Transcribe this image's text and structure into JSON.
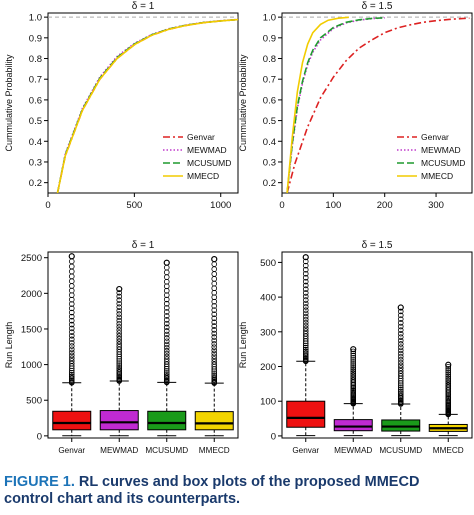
{
  "caption": {
    "label": "FIGURE 1.",
    "text": "RL curves and box plots of the proposed MMECD control chart and its counterparts."
  },
  "chart_data": [
    {
      "id": "cdf1",
      "type": "line",
      "title": "δ = 1",
      "xlabel": "",
      "ylabel": "Cummulative Probability",
      "xlim": [
        0,
        1100
      ],
      "ylim": [
        0.15,
        1.02
      ],
      "xticks": [
        "0",
        "500",
        "1000"
      ],
      "xtick_values": [
        0,
        500,
        1000
      ],
      "yticks": [
        "0.2",
        "0.3",
        "0.4",
        "0.5",
        "0.6",
        "0.7",
        "0.8",
        "0.9",
        "1.0"
      ],
      "ytick_values": [
        0.2,
        0.3,
        0.4,
        0.5,
        0.6,
        0.7,
        0.8,
        0.9,
        1.0
      ],
      "reference_line": 1.0,
      "legend_position": "bottom-right",
      "series": [
        {
          "name": "Genvar",
          "color": "#dd2222",
          "dash": "dashdot",
          "points": [
            [
              55,
              0.15
            ],
            [
              100,
              0.33
            ],
            [
              200,
              0.55
            ],
            [
              300,
              0.7
            ],
            [
              400,
              0.8
            ],
            [
              500,
              0.867
            ],
            [
              600,
              0.912
            ],
            [
              700,
              0.941
            ],
            [
              800,
              0.96
            ],
            [
              900,
              0.973
            ],
            [
              1000,
              0.982
            ],
            [
              1100,
              0.988
            ]
          ]
        },
        {
          "name": "MEWMAD",
          "color": "#c03acb",
          "dash": "dotted",
          "points": [
            [
              55,
              0.15
            ],
            [
              100,
              0.34
            ],
            [
              200,
              0.56
            ],
            [
              300,
              0.71
            ],
            [
              400,
              0.81
            ],
            [
              500,
              0.873
            ],
            [
              600,
              0.916
            ],
            [
              700,
              0.944
            ],
            [
              800,
              0.962
            ],
            [
              900,
              0.975
            ],
            [
              1000,
              0.983
            ],
            [
              1100,
              0.989
            ]
          ]
        },
        {
          "name": "MCUSUMD",
          "color": "#1e9a2e",
          "dash": "dashed",
          "points": [
            [
              55,
              0.15
            ],
            [
              100,
              0.335
            ],
            [
              200,
              0.555
            ],
            [
              300,
              0.705
            ],
            [
              400,
              0.805
            ],
            [
              500,
              0.87
            ],
            [
              600,
              0.914
            ],
            [
              700,
              0.943
            ],
            [
              800,
              0.961
            ],
            [
              900,
              0.974
            ],
            [
              1000,
              0.982
            ],
            [
              1100,
              0.988
            ]
          ]
        },
        {
          "name": "MMECD",
          "color": "#f2cc00",
          "dash": "solid",
          "points": [
            [
              55,
              0.15
            ],
            [
              100,
              0.33
            ],
            [
              200,
              0.55
            ],
            [
              300,
              0.7
            ],
            [
              400,
              0.8
            ],
            [
              500,
              0.867
            ],
            [
              600,
              0.912
            ],
            [
              700,
              0.941
            ],
            [
              800,
              0.96
            ],
            [
              900,
              0.973
            ],
            [
              1000,
              0.982
            ],
            [
              1100,
              0.988
            ]
          ]
        }
      ]
    },
    {
      "id": "cdf2",
      "type": "line",
      "title": "δ = 1.5",
      "xlabel": "",
      "ylabel": "Cummulative Probability",
      "xlim": [
        0,
        370
      ],
      "ylim": [
        0.15,
        1.02
      ],
      "xticks": [
        "0",
        "100",
        "200",
        "300"
      ],
      "xtick_values": [
        0,
        100,
        200,
        300
      ],
      "yticks": [
        "0.2",
        "0.3",
        "0.4",
        "0.5",
        "0.6",
        "0.7",
        "0.8",
        "0.9",
        "1.0"
      ],
      "ytick_values": [
        0.2,
        0.3,
        0.4,
        0.5,
        0.6,
        0.7,
        0.8,
        0.9,
        1.0
      ],
      "reference_line": 1.0,
      "legend_position": "bottom-right",
      "series": [
        {
          "name": "Genvar",
          "color": "#dd2222",
          "dash": "dashdot",
          "points": [
            [
              10,
              0.15
            ],
            [
              25,
              0.29
            ],
            [
              50,
              0.47
            ],
            [
              75,
              0.61
            ],
            [
              100,
              0.71
            ],
            [
              125,
              0.79
            ],
            [
              150,
              0.85
            ],
            [
              175,
              0.89
            ],
            [
              200,
              0.925
            ],
            [
              225,
              0.948
            ],
            [
              250,
              0.963
            ],
            [
              275,
              0.975
            ],
            [
              300,
              0.983
            ],
            [
              325,
              0.989
            ],
            [
              350,
              0.993
            ],
            [
              365,
              0.995
            ]
          ]
        },
        {
          "name": "MEWMAD",
          "color": "#c03acb",
          "dash": "dotted",
          "points": [
            [
              10,
              0.15
            ],
            [
              20,
              0.38
            ],
            [
              30,
              0.56
            ],
            [
              40,
              0.68
            ],
            [
              50,
              0.77
            ],
            [
              60,
              0.83
            ],
            [
              75,
              0.89
            ],
            [
              100,
              0.945
            ],
            [
              125,
              0.972
            ],
            [
              150,
              0.985
            ],
            [
              175,
              0.993
            ],
            [
              200,
              0.997
            ]
          ]
        },
        {
          "name": "MCUSUMD",
          "color": "#1e9a2e",
          "dash": "dashed",
          "points": [
            [
              10,
              0.15
            ],
            [
              20,
              0.39
            ],
            [
              30,
              0.57
            ],
            [
              40,
              0.69
            ],
            [
              50,
              0.78
            ],
            [
              60,
              0.84
            ],
            [
              75,
              0.9
            ],
            [
              100,
              0.95
            ],
            [
              125,
              0.975
            ],
            [
              150,
              0.987
            ],
            [
              175,
              0.994
            ],
            [
              200,
              0.997
            ]
          ]
        },
        {
          "name": "MMECD",
          "color": "#f2cc00",
          "dash": "solid",
          "points": [
            [
              10,
              0.15
            ],
            [
              20,
              0.42
            ],
            [
              30,
              0.64
            ],
            [
              40,
              0.78
            ],
            [
              50,
              0.87
            ],
            [
              60,
              0.925
            ],
            [
              75,
              0.965
            ],
            [
              90,
              0.985
            ],
            [
              110,
              0.995
            ],
            [
              130,
              0.999
            ]
          ]
        }
      ]
    },
    {
      "id": "box1",
      "type": "box",
      "title": "δ = 1",
      "xlabel": "",
      "ylabel": "Run Length",
      "ylim": [
        -30,
        2580
      ],
      "yticks": [
        "0",
        "500",
        "1000",
        "1500",
        "2000",
        "2500"
      ],
      "ytick_values": [
        0,
        500,
        1000,
        1500,
        2000,
        2500
      ],
      "categories": [
        "Genvar",
        "MEWMAD",
        "MCUSUMD",
        "MMECD"
      ],
      "boxes": [
        {
          "name": "Genvar",
          "color": "#ee1111",
          "min": 1,
          "q1": 85,
          "median": 180,
          "q3": 345,
          "whisker_high": 745,
          "outlier_max": 2520
        },
        {
          "name": "MEWMAD",
          "color": "#c02ad2",
          "min": 1,
          "q1": 85,
          "median": 190,
          "q3": 355,
          "whisker_high": 770,
          "outlier_max": 2060
        },
        {
          "name": "MCUSUMD",
          "color": "#1a9a1a",
          "min": 1,
          "q1": 85,
          "median": 180,
          "q3": 345,
          "whisker_high": 750,
          "outlier_max": 2430
        },
        {
          "name": "MMECD",
          "color": "#f2d400",
          "min": 1,
          "q1": 85,
          "median": 175,
          "q3": 340,
          "whisker_high": 740,
          "outlier_max": 2480
        }
      ]
    },
    {
      "id": "box2",
      "type": "box",
      "title": "δ = 1.5",
      "xlabel": "",
      "ylabel": "Run Length",
      "ylim": [
        -6,
        530
      ],
      "yticks": [
        "0",
        "100",
        "200",
        "300",
        "400",
        "500"
      ],
      "ytick_values": [
        0,
        100,
        200,
        300,
        400,
        500
      ],
      "categories": [
        "Genvar",
        "MEWMAD",
        "MCUSUMD",
        "MMECD"
      ],
      "boxes": [
        {
          "name": "Genvar",
          "color": "#ee1111",
          "min": 1,
          "q1": 25,
          "median": 52,
          "q3": 100,
          "whisker_high": 215,
          "outlier_max": 515
        },
        {
          "name": "MEWMAD",
          "color": "#c02ad2",
          "min": 1,
          "q1": 15,
          "median": 27,
          "q3": 47,
          "whisker_high": 93,
          "outlier_max": 250
        },
        {
          "name": "MCUSUMD",
          "color": "#1a9a1a",
          "min": 1,
          "q1": 14,
          "median": 27,
          "q3": 46,
          "whisker_high": 92,
          "outlier_max": 370
        },
        {
          "name": "MMECD",
          "color": "#f2d400",
          "min": 1,
          "q1": 13,
          "median": 22,
          "q3": 33,
          "whisker_high": 62,
          "outlier_max": 205
        }
      ]
    }
  ]
}
